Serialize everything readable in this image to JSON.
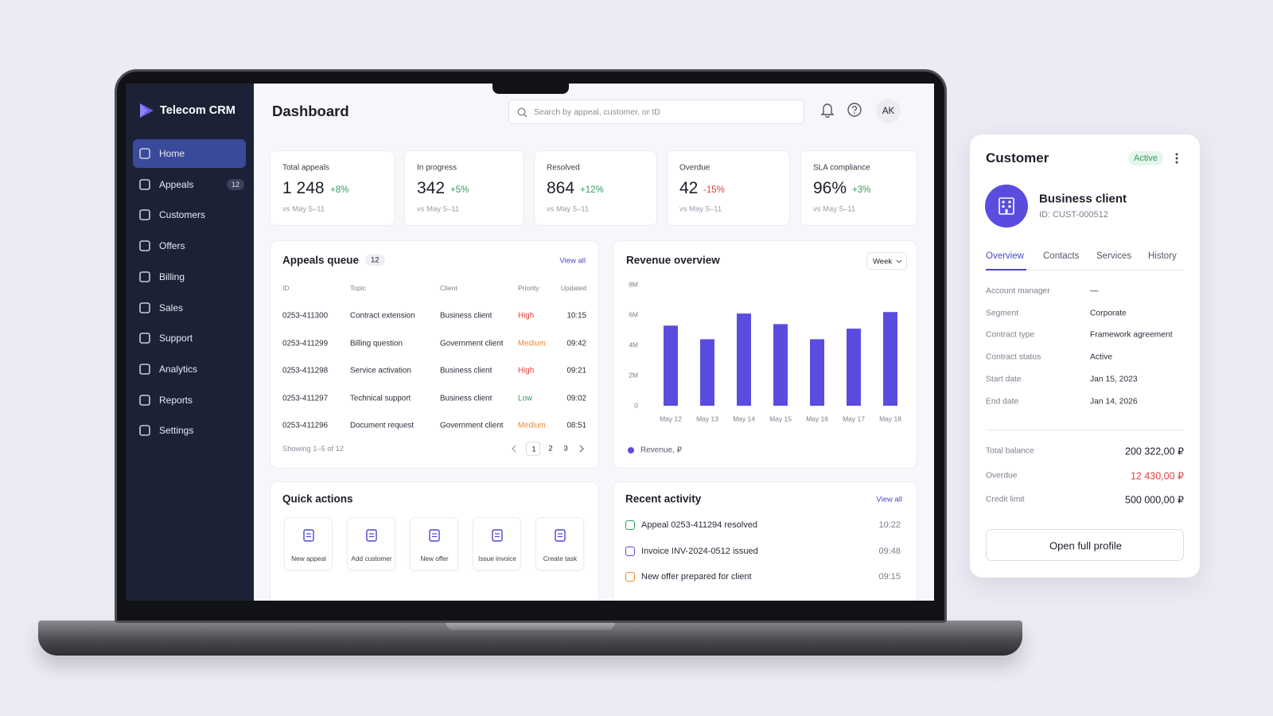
{
  "sidebar": {
    "brand": "Telecom CRM",
    "nav": [
      {
        "label": "Home"
      },
      {
        "label": "Appeals",
        "badge": "12"
      },
      {
        "label": "Customers"
      },
      {
        "label": "Offers"
      },
      {
        "label": "Billing"
      },
      {
        "label": "Sales"
      },
      {
        "label": "Support"
      },
      {
        "label": "Analytics"
      },
      {
        "label": "Reports"
      },
      {
        "label": "Settings"
      }
    ]
  },
  "header": {
    "title": "Dashboard",
    "search_placeholder": "Search by appeal, customer, or ID",
    "avatar": "AK"
  },
  "kpis": [
    {
      "label": "Total appeals",
      "value": "1 248",
      "change": "+8%",
      "change_color": "#2e9e5b",
      "period": "vs May 5–11"
    },
    {
      "label": "In progress",
      "value": "342",
      "change": "+5%",
      "change_color": "#2e9e5b",
      "period": "vs May 5–11"
    },
    {
      "label": "Resolved",
      "value": "864",
      "change": "+12%",
      "change_color": "#2e9e5b",
      "period": "vs May 5–11"
    },
    {
      "label": "Overdue",
      "value": "42",
      "change": "-15%",
      "change_color": "#e0413b",
      "period": "vs May 5–11"
    },
    {
      "label": "SLA compliance",
      "value": "96%",
      "change": "+3%",
      "change_color": "#2e9e5b",
      "period": "vs May 5–11"
    }
  ],
  "appeals_queue": {
    "title": "Appeals queue",
    "count": "12",
    "view_all": "View all",
    "columns": [
      "ID",
      "Topic",
      "Client",
      "Priority",
      "Updated"
    ],
    "rows": [
      {
        "id": "0253-411300",
        "topic": "Contract extension",
        "client": "Business client",
        "priority": "High",
        "priority_color": "#e0413b",
        "updated": "10:15"
      },
      {
        "id": "0253-411299",
        "topic": "Billing question",
        "client": "Government client",
        "priority": "Medium",
        "priority_color": "#ef8a2c",
        "updated": "09:42"
      },
      {
        "id": "0253-411298",
        "topic": "Service activation",
        "client": "Business client",
        "priority": "High",
        "priority_color": "#e0413b",
        "updated": "09:21"
      },
      {
        "id": "0253-411297",
        "topic": "Technical support",
        "client": "Business client",
        "priority": "Low",
        "priority_color": "#2e9e5b",
        "updated": "09:02"
      },
      {
        "id": "0253-411296",
        "topic": "Document request",
        "client": "Government client",
        "priority": "Medium",
        "priority_color": "#ef8a2c",
        "updated": "08:51"
      }
    ],
    "footer": "Showing 1–5 of 12",
    "pages": [
      "1",
      "2",
      "3"
    ]
  },
  "revenue": {
    "type": "bar",
    "title": "Revenue overview",
    "period": "Week",
    "categories": [
      "May 12",
      "May 13",
      "May 14",
      "May 15",
      "May 16",
      "May 17",
      "May 18"
    ],
    "values": [
      5300000,
      4400000,
      6100000,
      5400000,
      4400000,
      5100000,
      6200000
    ],
    "color": "#5b4ce0",
    "ylim": [
      0,
      8000000
    ],
    "yticks": [
      0,
      {
        "value": 2000000,
        "label": "2M"
      },
      {
        "value": 4000000,
        "label": "4M"
      },
      {
        "value": 6000000,
        "label": "6M"
      },
      {
        "value": 8000000,
        "label": "8M"
      }
    ],
    "legend": "Revenue, ₽"
  },
  "quick_actions": {
    "title": "Quick actions",
    "actions": [
      "New appeal",
      "Add customer",
      "New offer",
      "Issue invoice",
      "Create task"
    ]
  },
  "recent_activity": {
    "title": "Recent activity",
    "view_all": "View all",
    "items": [
      {
        "text": "Appeal 0253-411294 resolved",
        "time": "10:22",
        "color": "#2e9e5b"
      },
      {
        "text": "Invoice INV-2024-0512 issued",
        "time": "09:48",
        "color": "#5b4ce0"
      },
      {
        "text": "New offer prepared for client",
        "time": "09:15",
        "color": "#ef8a2c"
      }
    ]
  },
  "customer": {
    "title": "Customer",
    "status": "Active",
    "name": "Business client",
    "id": "ID: CUST-000512",
    "tabs": [
      "Overview",
      "Contacts",
      "Services",
      "History"
    ],
    "details": [
      [
        "Account manager",
        "—"
      ],
      [
        "Segment",
        "Corporate"
      ],
      [
        "Contract type",
        "Framework agreement"
      ],
      [
        "Contract status",
        "Active"
      ],
      [
        "Start date",
        "Jan 15, 2023"
      ],
      [
        "End date",
        "Jan 14, 2026"
      ]
    ],
    "totals": [
      {
        "label": "Total balance",
        "value": "200 322,00 ₽",
        "color": "#1d1f2b"
      },
      {
        "label": "Overdue",
        "value": "12 430,00 ₽",
        "color": "#e0413b"
      },
      {
        "label": "Credit limit",
        "value": "500 000,00 ₽",
        "color": "#1d1f2b"
      }
    ],
    "button": "Open full profile"
  }
}
